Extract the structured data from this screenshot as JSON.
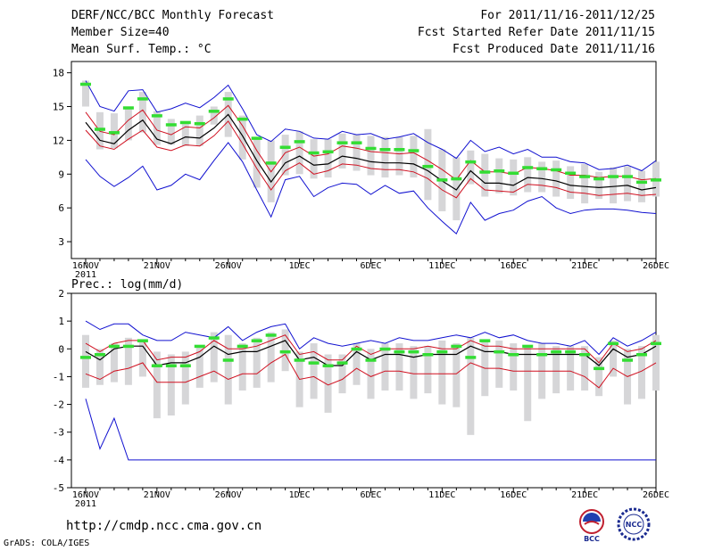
{
  "header": {
    "title": "DERF/NCC/BCC Monthly Forecast",
    "member_size": "Member Size=40",
    "variable": "Mean Surf. Temp.: °C",
    "forecast_period": "For 2011/11/16-2011/12/25",
    "fcst_started": "Fcst Started Refer Date 2011/11/15",
    "fcst_produced": "Fcst Produced Date 2011/11/16"
  },
  "footer": {
    "url": "http://cmdp.ncc.cma.gov.cn",
    "grads": "GrADS: COLA/IGES"
  },
  "logos": {
    "bcc_text": "BCC",
    "ncc_text": "NCC"
  },
  "colors": {
    "envelope": "#1010d0",
    "spread": "#d01020",
    "mean": "#000000",
    "median": "#33dd33",
    "box": "#d6d6d8"
  },
  "chart_data": [
    {
      "type": "line",
      "title": "Mean Surf. Temp.: °C",
      "ylim": [
        1.5,
        19
      ],
      "yticks": [
        3,
        6,
        9,
        12,
        15,
        18
      ],
      "x_labels": [
        {
          "day": 0,
          "label": "16NOV",
          "year": "2011"
        },
        {
          "day": 5,
          "label": "21NOV"
        },
        {
          "day": 10,
          "label": "26NOV"
        },
        {
          "day": 15,
          "label": "1DEC"
        },
        {
          "day": 20,
          "label": "6DEC"
        },
        {
          "day": 25,
          "label": "11DEC"
        },
        {
          "day": 30,
          "label": "16DEC"
        },
        {
          "day": 35,
          "label": "21DEC"
        },
        {
          "day": 40,
          "label": "26DEC"
        }
      ],
      "x_range": [
        -1,
        40
      ],
      "ensemble_max": [
        17.3,
        15,
        14.6,
        16.4,
        16.5,
        14.5,
        14.8,
        15.3,
        14.9,
        15.8,
        16.9,
        14.8,
        12.5,
        11.9,
        13.0,
        12.8,
        12.2,
        12.1,
        12.8,
        12.5,
        12.6,
        12.1,
        12.3,
        12.6,
        11.8,
        11.2,
        10.4,
        12,
        11,
        11.4,
        10.8,
        11.2,
        10.5,
        10.5,
        10.1,
        10,
        9.4,
        9.5,
        9.8,
        9.3,
        10.2
      ],
      "ensemble_min": [
        10.3,
        8.8,
        7.9,
        8.7,
        9.7,
        7.6,
        8,
        9,
        8.5,
        10.2,
        11.8,
        10.1,
        7.6,
        5.2,
        8.5,
        8.8,
        7,
        7.8,
        8.2,
        8.1,
        7.2,
        8,
        7.3,
        7.5,
        6,
        4.8,
        3.7,
        6.5,
        4.9,
        5.5,
        5.8,
        6.6,
        7,
        6,
        5.5,
        5.8,
        5.9,
        5.9,
        5.8,
        5.6,
        5.5
      ],
      "spread_upper": [
        14.5,
        12.8,
        12.5,
        13.8,
        14.7,
        12.9,
        12.5,
        13.2,
        13.1,
        14.0,
        15.1,
        13.3,
        11.1,
        9.2,
        10.9,
        11.4,
        10.6,
        10.8,
        11.5,
        11.3,
        11.0,
        10.9,
        10.8,
        10.9,
        10.2,
        9.4,
        8.5,
        10.2,
        9.2,
        9.2,
        9.0,
        9.6,
        9.5,
        9.3,
        8.9,
        8.9,
        8.7,
        8.8,
        8.8,
        8.5,
        8.6
      ],
      "mean": [
        13.6,
        12.0,
        11.7,
        12.9,
        13.8,
        12.1,
        11.7,
        12.3,
        12.2,
        13.1,
        14.3,
        12.4,
        10.2,
        8.3,
        10.0,
        10.6,
        9.8,
        9.9,
        10.6,
        10.4,
        10.1,
        10.0,
        10.0,
        9.9,
        9.3,
        8.4,
        7.6,
        9.3,
        8.2,
        8.2,
        8.0,
        8.7,
        8.6,
        8.4,
        8.0,
        7.9,
        7.8,
        7.9,
        8.0,
        7.6,
        7.8
      ],
      "spread_lower": [
        12.9,
        11.5,
        11.2,
        12.1,
        12.9,
        11.4,
        11.1,
        11.6,
        11.5,
        12.4,
        13.7,
        11.7,
        9.5,
        7.6,
        9.3,
        10.0,
        9.0,
        9.3,
        9.9,
        9.8,
        9.5,
        9.4,
        9.4,
        9.2,
        8.6,
        7.6,
        6.9,
        8.6,
        7.6,
        7.5,
        7.4,
        8.1,
        8.0,
        7.8,
        7.4,
        7.3,
        7.1,
        7.2,
        7.3,
        7.1,
        7.2
      ],
      "box_top": [
        17.3,
        14.5,
        14.4,
        14.9,
        16.3,
        14.6,
        13.9,
        13.7,
        14.2,
        15.0,
        16.3,
        14.2,
        12.3,
        12.0,
        12.5,
        12.8,
        12.1,
        12.1,
        12.6,
        12.5,
        12.4,
        12.3,
        12.3,
        12.4,
        13.0,
        11.2,
        10.5,
        11.1,
        10.8,
        10.4,
        10.3,
        10.5,
        10.1,
        10.2,
        9.7,
        9.9,
        9.2,
        9.6,
        9.7,
        9.3,
        10.1
      ],
      "box_bottom": [
        15.0,
        11.2,
        11.3,
        12.0,
        12.7,
        11.6,
        11.6,
        11.5,
        11.5,
        13.4,
        12.3,
        10.3,
        7.8,
        6.5,
        8.9,
        9.0,
        8.6,
        8.7,
        9.5,
        9.3,
        8.9,
        8.7,
        8.9,
        8.7,
        6.7,
        5.7,
        4.9,
        8.1,
        7.0,
        7.3,
        7.1,
        7.4,
        7.4,
        7.0,
        6.8,
        6.4,
        6.8,
        6.4,
        6.6,
        6.5,
        7.0
      ],
      "median": [
        17.0,
        13.0,
        12.7,
        14.9,
        15.7,
        14.2,
        13.4,
        13.6,
        13.5,
        14.6,
        15.7,
        13.9,
        12.2,
        10.0,
        11.4,
        11.9,
        10.9,
        11.0,
        11.8,
        11.8,
        11.3,
        11.2,
        11.2,
        11.1,
        9.7,
        8.5,
        8.6,
        10.1,
        9.2,
        9.3,
        9.1,
        9.6,
        9.5,
        9.4,
        9.1,
        8.8,
        8.6,
        8.8,
        8.8,
        8.3,
        8.5
      ]
    },
    {
      "type": "line",
      "title": "Prec.: log(mm/d)",
      "ylim": [
        -5,
        2
      ],
      "yticks": [
        -5,
        -4,
        -3,
        -2,
        -1,
        0,
        1,
        2
      ],
      "x_labels": [
        {
          "day": 0,
          "label": "16NOV",
          "year": "2011"
        },
        {
          "day": 5,
          "label": "21NOV"
        },
        {
          "day": 10,
          "label": "26NOV"
        },
        {
          "day": 15,
          "label": "1DEC"
        },
        {
          "day": 20,
          "label": "6DEC"
        },
        {
          "day": 25,
          "label": "11DEC"
        },
        {
          "day": 30,
          "label": "16DEC"
        },
        {
          "day": 35,
          "label": "21DEC"
        },
        {
          "day": 40,
          "label": "26DEC"
        }
      ],
      "x_range": [
        -1,
        40
      ],
      "ensemble_max": [
        1.0,
        0.7,
        0.9,
        0.9,
        0.5,
        0.3,
        0.3,
        0.6,
        0.5,
        0.4,
        0.8,
        0.3,
        0.6,
        0.8,
        0.9,
        0.0,
        0.4,
        0.2,
        0.1,
        0.2,
        0.3,
        0.2,
        0.4,
        0.3,
        0.3,
        0.4,
        0.5,
        0.4,
        0.6,
        0.4,
        0.5,
        0.3,
        0.2,
        0.2,
        0.1,
        0.3,
        -0.2,
        0.4,
        0.1,
        0.3,
        0.6
      ],
      "ensemble_min": [
        -1.8,
        -3.6,
        -2.5,
        -4.0,
        -4.0,
        -4.0,
        -4.0,
        -4.0,
        -4.0,
        -4.0,
        -4.0,
        -4.0,
        -4.0,
        -4.0,
        -4.0,
        -4.0,
        -4.0,
        -4.0,
        -4.0,
        -4.0,
        -4.0,
        -4.0,
        -4.0,
        -4.0,
        -4.0,
        -4.0,
        -4.0,
        -4.0,
        -4.0,
        -4.0,
        -4.0,
        -4.0,
        -4.0,
        -4.0,
        -4.0,
        -4.0,
        -4.0,
        -4.0,
        -4.0,
        -4.0,
        -4.0
      ],
      "spread_upper": [
        0.2,
        -0.1,
        0.2,
        0.3,
        0.3,
        -0.4,
        -0.3,
        -0.3,
        -0.1,
        0.3,
        0.0,
        0.0,
        0.1,
        0.3,
        0.5,
        -0.2,
        -0.1,
        -0.4,
        -0.4,
        0.1,
        -0.2,
        0.0,
        0.0,
        0.0,
        0.1,
        0.0,
        0.0,
        0.3,
        0.1,
        0.1,
        0.0,
        0.0,
        0.0,
        0.0,
        0.0,
        0.0,
        -0.5,
        0.2,
        -0.1,
        0.0,
        0.3
      ],
      "mean": [
        -0.1,
        -0.4,
        0.0,
        0.1,
        0.1,
        -0.6,
        -0.5,
        -0.5,
        -0.3,
        0.1,
        -0.2,
        -0.1,
        -0.1,
        0.1,
        0.3,
        -0.4,
        -0.3,
        -0.6,
        -0.6,
        -0.1,
        -0.4,
        -0.2,
        -0.2,
        -0.3,
        -0.2,
        -0.2,
        -0.2,
        0.1,
        -0.1,
        -0.1,
        -0.2,
        -0.2,
        -0.2,
        -0.2,
        -0.2,
        -0.2,
        -0.6,
        -0.0,
        -0.3,
        -0.2,
        0.1
      ],
      "spread_lower": [
        -0.9,
        -1.1,
        -0.8,
        -0.7,
        -0.5,
        -1.2,
        -1.2,
        -1.2,
        -1.0,
        -0.8,
        -1.1,
        -0.9,
        -0.9,
        -0.5,
        -0.2,
        -1.1,
        -1.0,
        -1.3,
        -1.1,
        -0.7,
        -1.0,
        -0.8,
        -0.8,
        -0.9,
        -0.9,
        -0.9,
        -0.9,
        -0.5,
        -0.7,
        -0.7,
        -0.8,
        -0.8,
        -0.8,
        -0.8,
        -0.8,
        -1.0,
        -1.4,
        -0.7,
        -1.0,
        -0.8,
        -0.5
      ],
      "box_top": [
        0.5,
        0.0,
        0.2,
        0.4,
        0.3,
        -0.1,
        -0.2,
        -0.1,
        0.1,
        0.6,
        0.5,
        0.2,
        0.4,
        0.6,
        0.7,
        -0.1,
        0.2,
        -0.2,
        -0.2,
        0.2,
        0.0,
        0.2,
        0.2,
        0.1,
        0.1,
        0.3,
        0.2,
        0.4,
        0.3,
        0.3,
        0.2,
        0.1,
        0.2,
        0.1,
        0.1,
        0.1,
        -0.3,
        0.3,
        0.0,
        0.1,
        0.5
      ],
      "box_bottom": [
        -1.4,
        -1.3,
        -1.2,
        -1.3,
        -1.0,
        -2.5,
        -2.4,
        -2.0,
        -1.4,
        -1.2,
        -2.0,
        -1.5,
        -1.4,
        -1.2,
        -0.8,
        -2.1,
        -1.8,
        -2.3,
        -1.6,
        -1.3,
        -1.8,
        -1.5,
        -1.5,
        -1.8,
        -1.6,
        -2.0,
        -2.1,
        -3.1,
        -1.7,
        -1.4,
        -1.5,
        -2.6,
        -1.8,
        -1.6,
        -1.5,
        -1.5,
        -1.7,
        -1.0,
        -2.0,
        -1.8,
        -1.5
      ],
      "median": [
        -0.3,
        -0.2,
        0.1,
        0.1,
        0.3,
        -0.6,
        -0.6,
        -0.6,
        0.1,
        0.4,
        -0.4,
        0.1,
        0.3,
        0.5,
        -0.1,
        -0.4,
        -0.5,
        -0.6,
        -0.5,
        0.0,
        -0.4,
        0.0,
        -0.1,
        -0.1,
        -0.2,
        -0.1,
        0.1,
        -0.3,
        0.3,
        -0.1,
        -0.2,
        0.1,
        -0.2,
        -0.1,
        -0.1,
        -0.2,
        -0.7,
        0.2,
        -0.4,
        -0.2,
        0.2
      ]
    }
  ]
}
